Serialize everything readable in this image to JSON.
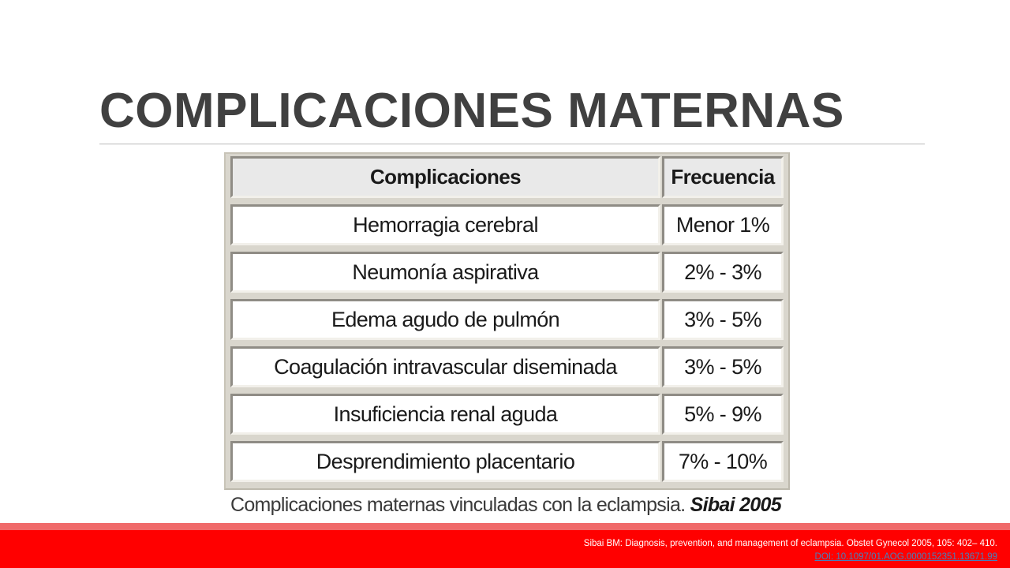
{
  "slide": {
    "title": "COMPLICACIONES MATERNAS"
  },
  "table": {
    "headers": [
      "Complicaciones",
      "Frecuencia"
    ],
    "rows": [
      {
        "complication": "Hemorragia cerebral",
        "frequency": "Menor 1%"
      },
      {
        "complication": "Neumonía aspirativa",
        "frequency": "2% - 3%"
      },
      {
        "complication": "Edema agudo de pulmón",
        "frequency": "3% - 5%"
      },
      {
        "complication": "Coagulación intravascular diseminada",
        "frequency": "3% - 5%"
      },
      {
        "complication": "Insuficiencia renal aguda",
        "frequency": "5% - 9%"
      },
      {
        "complication": "Desprendimiento placentario",
        "frequency": "7% - 10%"
      }
    ]
  },
  "caption": {
    "text": "Complicaciones maternas vinculadas con la eclampsia. ",
    "source": "Sibai 2005"
  },
  "footer": {
    "reference": "Sibai BM: Diagnosis, prevention, and management of eclampsia. Obstet Gynecol 2005, 105: 402– 410.",
    "doi": "DOI: 10.1097/01.AOG.0000152351.13671.99"
  }
}
